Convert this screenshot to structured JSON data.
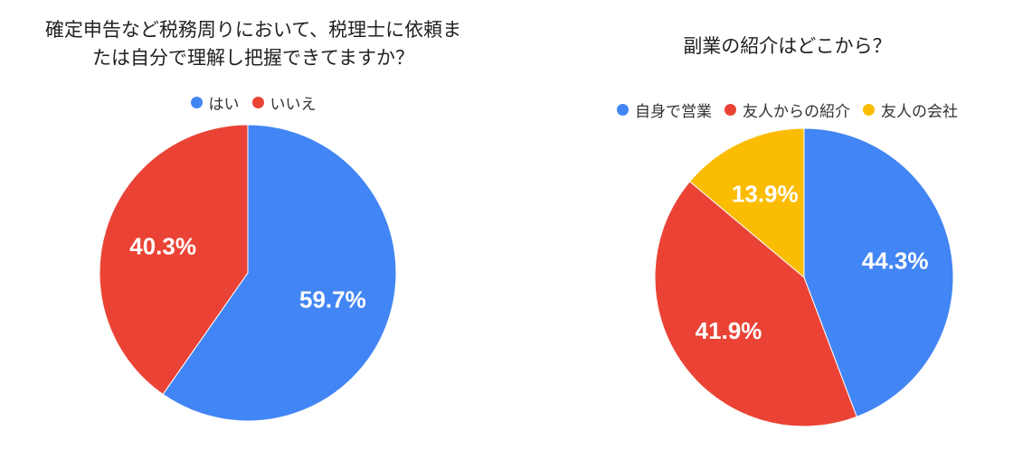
{
  "colors": {
    "blue": "#4285F4",
    "red": "#EA4335",
    "yellow": "#FBBC04"
  },
  "chart_data": [
    {
      "type": "pie",
      "title": "確定申告など税務周りにおいて、税理士に依頼ま\nたは自分で理解し把握できてますか？",
      "labels": [
        "はい",
        "いいえ"
      ],
      "values": [
        59.7,
        40.3
      ],
      "colors": [
        "#4285F4",
        "#EA4335"
      ],
      "value_labels": [
        "59.7%",
        "40.3%"
      ],
      "legend": "top"
    },
    {
      "type": "pie",
      "title": "副業の紹介はどこから？",
      "labels": [
        "自身で営業",
        "友人からの紹介",
        "友人の会社"
      ],
      "values": [
        44.3,
        41.9,
        13.9
      ],
      "colors": [
        "#4285F4",
        "#EA4335",
        "#FBBC04"
      ],
      "value_labels": [
        "44.3%",
        "41.9%",
        "13.9%"
      ],
      "legend": "top"
    }
  ]
}
